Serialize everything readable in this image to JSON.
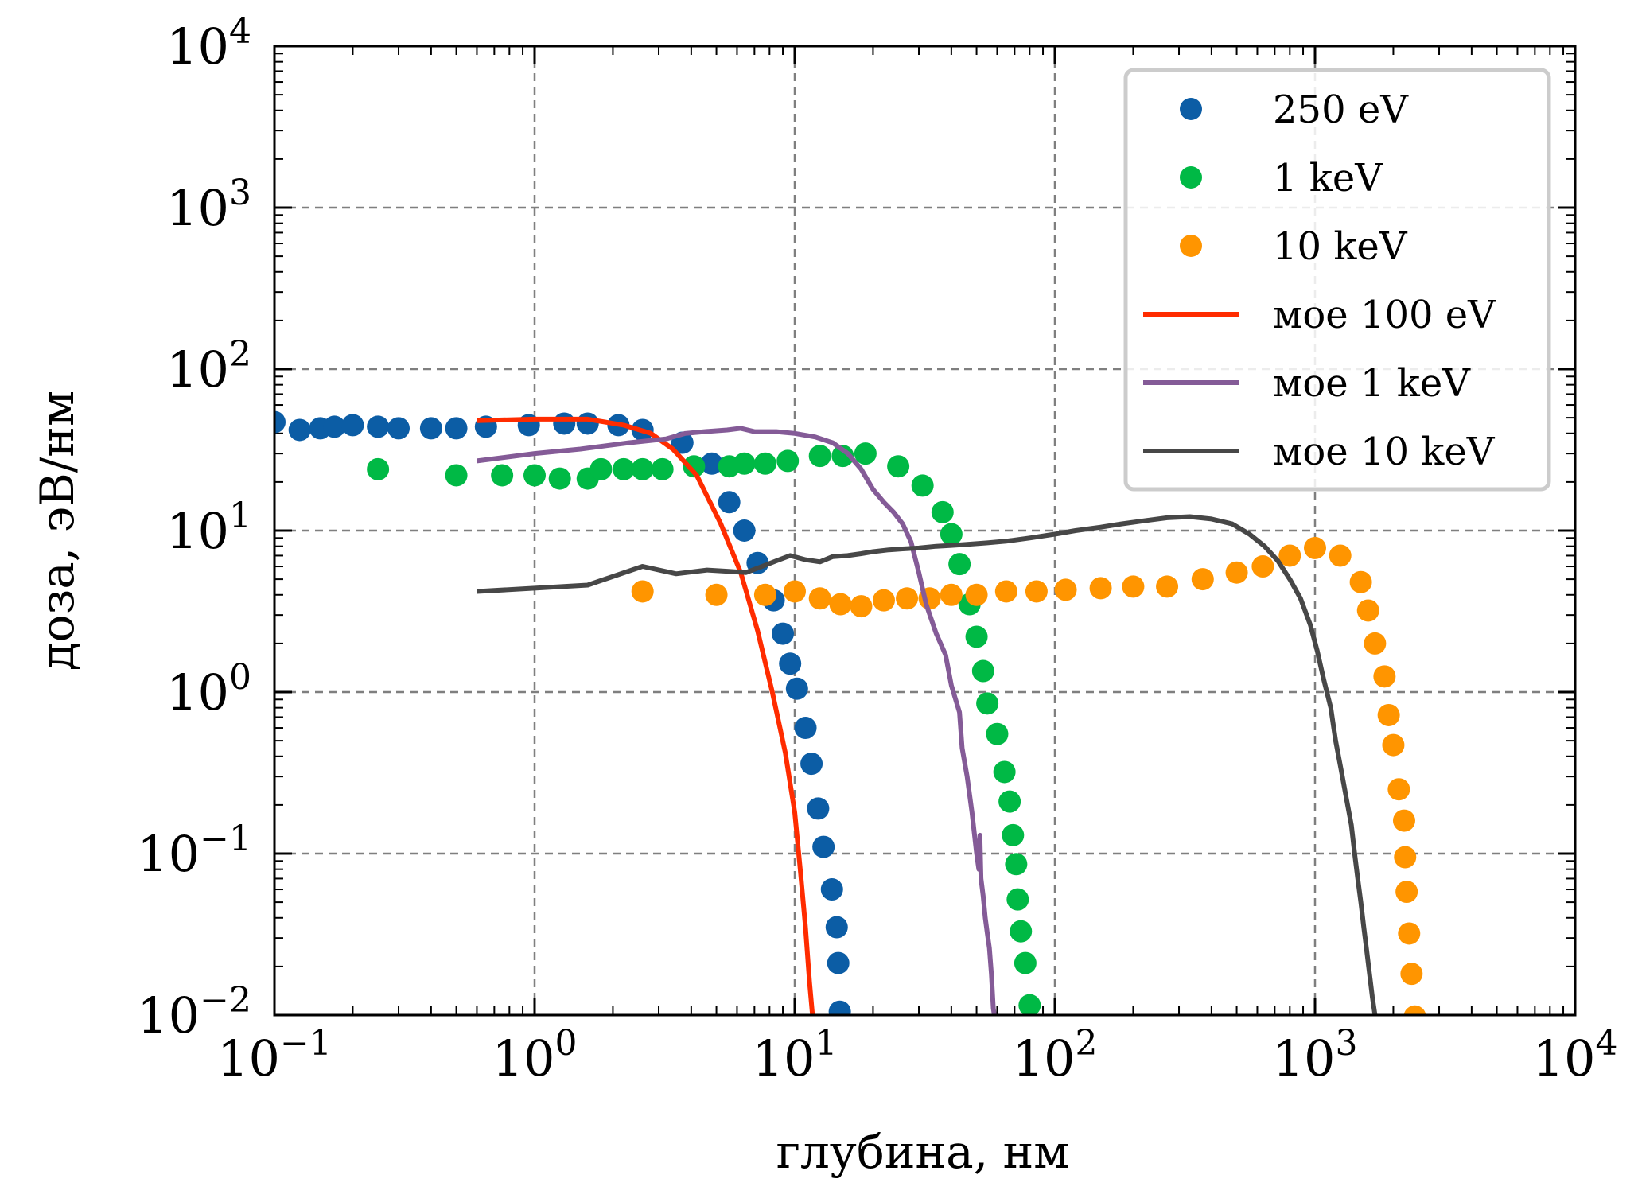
{
  "chart_data": {
    "type": "scatter",
    "title": "",
    "xlabel": "глубина, нм",
    "ylabel": "доза, эВ/нм",
    "xscale": "log",
    "yscale": "log",
    "xlim": [
      0.1,
      10000
    ],
    "ylim": [
      0.01,
      10000
    ],
    "grid": true,
    "legend_position": "top-right",
    "x_ticks": [
      {
        "value": 0.1,
        "base": "10",
        "exp": "−1"
      },
      {
        "value": 1,
        "base": "10",
        "exp": "0"
      },
      {
        "value": 10,
        "base": "10",
        "exp": "1"
      },
      {
        "value": 100,
        "base": "10",
        "exp": "2"
      },
      {
        "value": 1000,
        "base": "10",
        "exp": "3"
      },
      {
        "value": 10000,
        "base": "10",
        "exp": "4"
      }
    ],
    "y_ticks": [
      {
        "value": 0.01,
        "base": "10",
        "exp": "−2"
      },
      {
        "value": 0.1,
        "base": "10",
        "exp": "−1"
      },
      {
        "value": 1,
        "base": "10",
        "exp": "0"
      },
      {
        "value": 10,
        "base": "10",
        "exp": "1"
      },
      {
        "value": 100,
        "base": "10",
        "exp": "2"
      },
      {
        "value": 1000,
        "base": "10",
        "exp": "3"
      },
      {
        "value": 10000,
        "base": "10",
        "exp": "4"
      }
    ],
    "series": [
      {
        "name": "250 eV",
        "kind": "markers",
        "color": "#0C5DA5",
        "points": [
          [
            0.1,
            47
          ],
          [
            0.125,
            42
          ],
          [
            0.15,
            43
          ],
          [
            0.17,
            44
          ],
          [
            0.2,
            45
          ],
          [
            0.25,
            44
          ],
          [
            0.3,
            43
          ],
          [
            0.4,
            43
          ],
          [
            0.5,
            43
          ],
          [
            0.65,
            44
          ],
          [
            0.95,
            45
          ],
          [
            1.3,
            46
          ],
          [
            1.6,
            46
          ],
          [
            2.1,
            45
          ],
          [
            2.6,
            42
          ],
          [
            3.7,
            35
          ],
          [
            4.8,
            26
          ],
          [
            5.6,
            15
          ],
          [
            6.4,
            10
          ],
          [
            7.2,
            6.3
          ],
          [
            8.3,
            3.7
          ],
          [
            9.0,
            2.3
          ],
          [
            9.6,
            1.5
          ],
          [
            10.2,
            1.05
          ],
          [
            11.0,
            0.6
          ],
          [
            11.6,
            0.36
          ],
          [
            12.3,
            0.19
          ],
          [
            12.9,
            0.11
          ],
          [
            13.9,
            0.06
          ],
          [
            14.5,
            0.035
          ],
          [
            14.7,
            0.021
          ],
          [
            14.9,
            0.0105
          ]
        ]
      },
      {
        "name": "1 keV",
        "kind": "markers",
        "color": "#00B945",
        "points": [
          [
            0.25,
            24
          ],
          [
            0.5,
            22
          ],
          [
            0.75,
            22
          ],
          [
            1.0,
            22
          ],
          [
            1.25,
            21
          ],
          [
            1.6,
            21
          ],
          [
            1.8,
            24
          ],
          [
            2.2,
            24
          ],
          [
            2.6,
            24
          ],
          [
            3.1,
            24
          ],
          [
            4.1,
            25
          ],
          [
            5.6,
            25
          ],
          [
            6.4,
            26
          ],
          [
            7.7,
            26
          ],
          [
            9.4,
            27
          ],
          [
            12.5,
            29
          ],
          [
            15.3,
            29
          ],
          [
            18.7,
            30
          ],
          [
            25,
            25
          ],
          [
            31,
            19
          ],
          [
            37,
            13
          ],
          [
            40,
            9.5
          ],
          [
            43,
            6.2
          ],
          [
            47,
            3.5
          ],
          [
            50,
            2.2
          ],
          [
            53,
            1.35
          ],
          [
            55,
            0.85
          ],
          [
            60,
            0.55
          ],
          [
            64,
            0.32
          ],
          [
            67,
            0.21
          ],
          [
            69,
            0.13
          ],
          [
            71,
            0.086
          ],
          [
            72,
            0.052
          ],
          [
            74,
            0.033
          ],
          [
            77,
            0.021
          ],
          [
            80,
            0.0115
          ]
        ]
      },
      {
        "name": "10 keV",
        "kind": "markers",
        "color": "#FF9500",
        "points": [
          [
            2.6,
            4.2
          ],
          [
            5.0,
            4.0
          ],
          [
            7.7,
            4.0
          ],
          [
            10.0,
            4.2
          ],
          [
            12.5,
            3.8
          ],
          [
            15,
            3.5
          ],
          [
            18,
            3.4
          ],
          [
            22,
            3.7
          ],
          [
            27,
            3.8
          ],
          [
            33,
            3.8
          ],
          [
            40,
            4.0
          ],
          [
            50,
            4.0
          ],
          [
            65,
            4.2
          ],
          [
            85,
            4.2
          ],
          [
            110,
            4.3
          ],
          [
            150,
            4.4
          ],
          [
            200,
            4.5
          ],
          [
            270,
            4.5
          ],
          [
            370,
            5.0
          ],
          [
            500,
            5.5
          ],
          [
            630,
            6.0
          ],
          [
            800,
            7.0
          ],
          [
            1000,
            7.8
          ],
          [
            1250,
            7.0
          ],
          [
            1500,
            4.8
          ],
          [
            1600,
            3.2
          ],
          [
            1700,
            2.0
          ],
          [
            1850,
            1.25
          ],
          [
            1920,
            0.72
          ],
          [
            2000,
            0.47
          ],
          [
            2100,
            0.25
          ],
          [
            2200,
            0.16
          ],
          [
            2220,
            0.095
          ],
          [
            2250,
            0.058
          ],
          [
            2300,
            0.032
          ],
          [
            2350,
            0.018
          ],
          [
            2420,
            0.0098
          ]
        ]
      },
      {
        "name": "мое 100 eV",
        "kind": "line",
        "color": "#FF2C00",
        "points": [
          [
            0.6,
            48
          ],
          [
            1.0,
            49
          ],
          [
            1.6,
            49
          ],
          [
            2.2,
            45
          ],
          [
            2.8,
            40
          ],
          [
            3.4,
            32
          ],
          [
            4.2,
            22
          ],
          [
            5.2,
            11
          ],
          [
            6.2,
            5.5
          ],
          [
            7.2,
            2.4
          ],
          [
            8.2,
            1.0
          ],
          [
            9.2,
            0.42
          ],
          [
            10.0,
            0.18
          ],
          [
            10.5,
            0.08
          ],
          [
            11.0,
            0.035
          ],
          [
            11.4,
            0.016
          ],
          [
            11.7,
            0.01
          ]
        ]
      },
      {
        "name": "мое 1 keV",
        "kind": "line",
        "color": "#845B97",
        "points": [
          [
            0.6,
            27
          ],
          [
            1.0,
            30
          ],
          [
            1.5,
            32
          ],
          [
            2.3,
            35
          ],
          [
            3.2,
            37
          ],
          [
            3.8,
            40
          ],
          [
            4.5,
            41
          ],
          [
            5.5,
            42
          ],
          [
            6.2,
            43
          ],
          [
            7.0,
            41
          ],
          [
            8.5,
            41
          ],
          [
            10.0,
            40
          ],
          [
            12.0,
            38
          ],
          [
            14.0,
            35
          ],
          [
            16.0,
            30
          ],
          [
            18.0,
            24
          ],
          [
            20.0,
            18
          ],
          [
            22.0,
            15
          ],
          [
            24.0,
            13
          ],
          [
            26.0,
            11
          ],
          [
            28.0,
            8.5
          ],
          [
            30.0,
            5.5
          ],
          [
            32.0,
            3.5
          ],
          [
            35.0,
            2.3
          ],
          [
            38.0,
            1.7
          ],
          [
            40.0,
            1.1
          ],
          [
            43.0,
            0.75
          ],
          [
            44.0,
            0.45
          ],
          [
            46.0,
            0.3
          ],
          [
            48.0,
            0.18
          ],
          [
            50.0,
            0.1
          ],
          [
            51.0,
            0.08
          ],
          [
            51.5,
            0.13
          ],
          [
            52.0,
            0.07
          ],
          [
            53.0,
            0.055
          ],
          [
            54.0,
            0.04
          ],
          [
            55.0,
            0.032
          ],
          [
            56.0,
            0.026
          ],
          [
            57.0,
            0.018
          ],
          [
            58.0,
            0.011
          ],
          [
            58.5,
            0.01
          ]
        ]
      },
      {
        "name": "мое 10 keV",
        "kind": "line",
        "color": "#474747",
        "points": [
          [
            0.6,
            4.2
          ],
          [
            1.0,
            4.4
          ],
          [
            1.6,
            4.6
          ],
          [
            2.6,
            6.0
          ],
          [
            3.5,
            5.4
          ],
          [
            4.6,
            5.7
          ],
          [
            5.5,
            5.6
          ],
          [
            6.5,
            5.5
          ],
          [
            7.5,
            6.0
          ],
          [
            8.5,
            6.5
          ],
          [
            9.6,
            7.0
          ],
          [
            11,
            6.6
          ],
          [
            12.5,
            6.4
          ],
          [
            14,
            6.9
          ],
          [
            16,
            7.0
          ],
          [
            18,
            7.2
          ],
          [
            20,
            7.4
          ],
          [
            23,
            7.6
          ],
          [
            26,
            7.7
          ],
          [
            30,
            7.8
          ],
          [
            35,
            8.0
          ],
          [
            40,
            8.1
          ],
          [
            45,
            8.2
          ],
          [
            55,
            8.4
          ],
          [
            65,
            8.6
          ],
          [
            80,
            9.0
          ],
          [
            100,
            9.5
          ],
          [
            120,
            10.0
          ],
          [
            150,
            10.5
          ],
          [
            180,
            11.0
          ],
          [
            220,
            11.5
          ],
          [
            270,
            12.0
          ],
          [
            330,
            12.2
          ],
          [
            400,
            11.8
          ],
          [
            480,
            11.0
          ],
          [
            560,
            9.5
          ],
          [
            640,
            8.0
          ],
          [
            720,
            6.5
          ],
          [
            800,
            5.0
          ],
          [
            880,
            3.8
          ],
          [
            960,
            2.6
          ],
          [
            1020,
            1.8
          ],
          [
            1080,
            1.2
          ],
          [
            1150,
            0.8
          ],
          [
            1200,
            0.5
          ],
          [
            1260,
            0.33
          ],
          [
            1320,
            0.22
          ],
          [
            1380,
            0.15
          ],
          [
            1420,
            0.1
          ],
          [
            1460,
            0.07
          ],
          [
            1500,
            0.05
          ],
          [
            1540,
            0.035
          ],
          [
            1580,
            0.025
          ],
          [
            1620,
            0.018
          ],
          [
            1660,
            0.013
          ],
          [
            1700,
            0.01
          ]
        ]
      }
    ]
  }
}
